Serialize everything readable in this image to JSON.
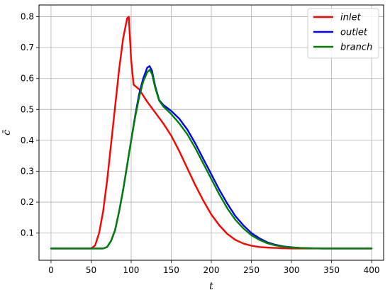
{
  "chart_data": {
    "type": "line",
    "title": "",
    "xlabel": "t",
    "ylabel": "c̄",
    "xlim": [
      -15,
      415
    ],
    "ylim": [
      0.012,
      0.838
    ],
    "xticks": [
      0,
      50,
      100,
      150,
      200,
      250,
      300,
      350,
      400
    ],
    "yticks": [
      0.1,
      0.2,
      0.3,
      0.4,
      0.5,
      0.6,
      0.7,
      0.8
    ],
    "grid": true,
    "legend_position": "top-right",
    "series": [
      {
        "name": "inlet",
        "color": "#ff0000",
        "x": [
          0,
          50,
          55,
          60,
          65,
          70,
          75,
          80,
          85,
          90,
          95,
          97,
          100,
          103,
          110,
          120,
          130,
          140,
          150,
          160,
          170,
          180,
          190,
          200,
          210,
          220,
          230,
          240,
          250,
          260,
          270,
          280,
          290,
          300,
          320,
          340,
          360,
          380,
          400
        ],
        "y": [
          0.05,
          0.05,
          0.06,
          0.1,
          0.17,
          0.27,
          0.39,
          0.51,
          0.63,
          0.73,
          0.795,
          0.8,
          0.66,
          0.58,
          0.565,
          0.525,
          0.49,
          0.455,
          0.415,
          0.365,
          0.31,
          0.255,
          0.205,
          0.16,
          0.125,
          0.097,
          0.078,
          0.066,
          0.059,
          0.055,
          0.053,
          0.052,
          0.051,
          0.05,
          0.05,
          0.05,
          0.05,
          0.05,
          0.05
        ]
      },
      {
        "name": "outlet",
        "color": "#0000ff",
        "x": [
          0,
          65,
          70,
          75,
          80,
          85,
          90,
          95,
          100,
          105,
          110,
          115,
          120,
          123,
          126,
          130,
          135,
          140,
          150,
          160,
          170,
          180,
          190,
          200,
          210,
          220,
          230,
          240,
          250,
          260,
          270,
          280,
          290,
          300,
          310,
          320,
          340,
          360,
          380,
          400
        ],
        "y": [
          0.05,
          0.05,
          0.055,
          0.075,
          0.11,
          0.17,
          0.24,
          0.32,
          0.4,
          0.48,
          0.55,
          0.6,
          0.635,
          0.64,
          0.625,
          0.575,
          0.53,
          0.515,
          0.495,
          0.47,
          0.435,
          0.39,
          0.34,
          0.29,
          0.24,
          0.195,
          0.155,
          0.125,
          0.1,
          0.083,
          0.07,
          0.062,
          0.057,
          0.054,
          0.052,
          0.051,
          0.05,
          0.05,
          0.05,
          0.05
        ]
      },
      {
        "name": "branch",
        "color": "#008000",
        "x": [
          0,
          65,
          70,
          75,
          80,
          85,
          90,
          95,
          100,
          105,
          110,
          115,
          120,
          123,
          126,
          130,
          135,
          140,
          150,
          160,
          170,
          180,
          190,
          200,
          210,
          220,
          230,
          240,
          250,
          260,
          270,
          280,
          290,
          300,
          310,
          320,
          340,
          360,
          380,
          400
        ],
        "y": [
          0.05,
          0.05,
          0.055,
          0.075,
          0.11,
          0.17,
          0.24,
          0.32,
          0.4,
          0.475,
          0.54,
          0.59,
          0.62,
          0.628,
          0.615,
          0.57,
          0.528,
          0.51,
          0.485,
          0.455,
          0.42,
          0.375,
          0.325,
          0.275,
          0.225,
          0.18,
          0.143,
          0.115,
          0.093,
          0.078,
          0.067,
          0.06,
          0.056,
          0.053,
          0.052,
          0.051,
          0.05,
          0.05,
          0.05,
          0.05
        ]
      }
    ]
  }
}
